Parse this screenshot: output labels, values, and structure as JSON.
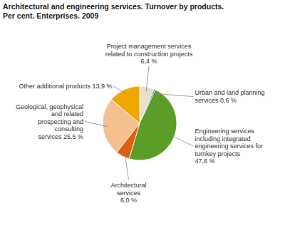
{
  "chart_data": {
    "type": "pie",
    "title": "Architectural and engineering services. Turnover by products.",
    "subtitle": "Per cent. Enterprises. 2009",
    "categories": [
      "Project management services\nrelated to construction projects\n6,4 %",
      "Urban and land planning\nservices 0,6 %",
      "Engineering services\nincluding integrated\nengineering services for\nturnkey projects\n47,6 %",
      "Architectural\nservices\n6,0 %",
      "Geological, geophysical\nand related\nprospecting and\nconsulting\nservices 25,5 %",
      "Other additional products 13,9 %"
    ],
    "values": [
      6.4,
      0.6,
      47.6,
      6.0,
      25.5,
      13.9
    ],
    "colors": [
      "#e8dfc8",
      "#2060b0",
      "#5a9e28",
      "#e06010",
      "#f5c090",
      "#f0a800"
    ]
  }
}
